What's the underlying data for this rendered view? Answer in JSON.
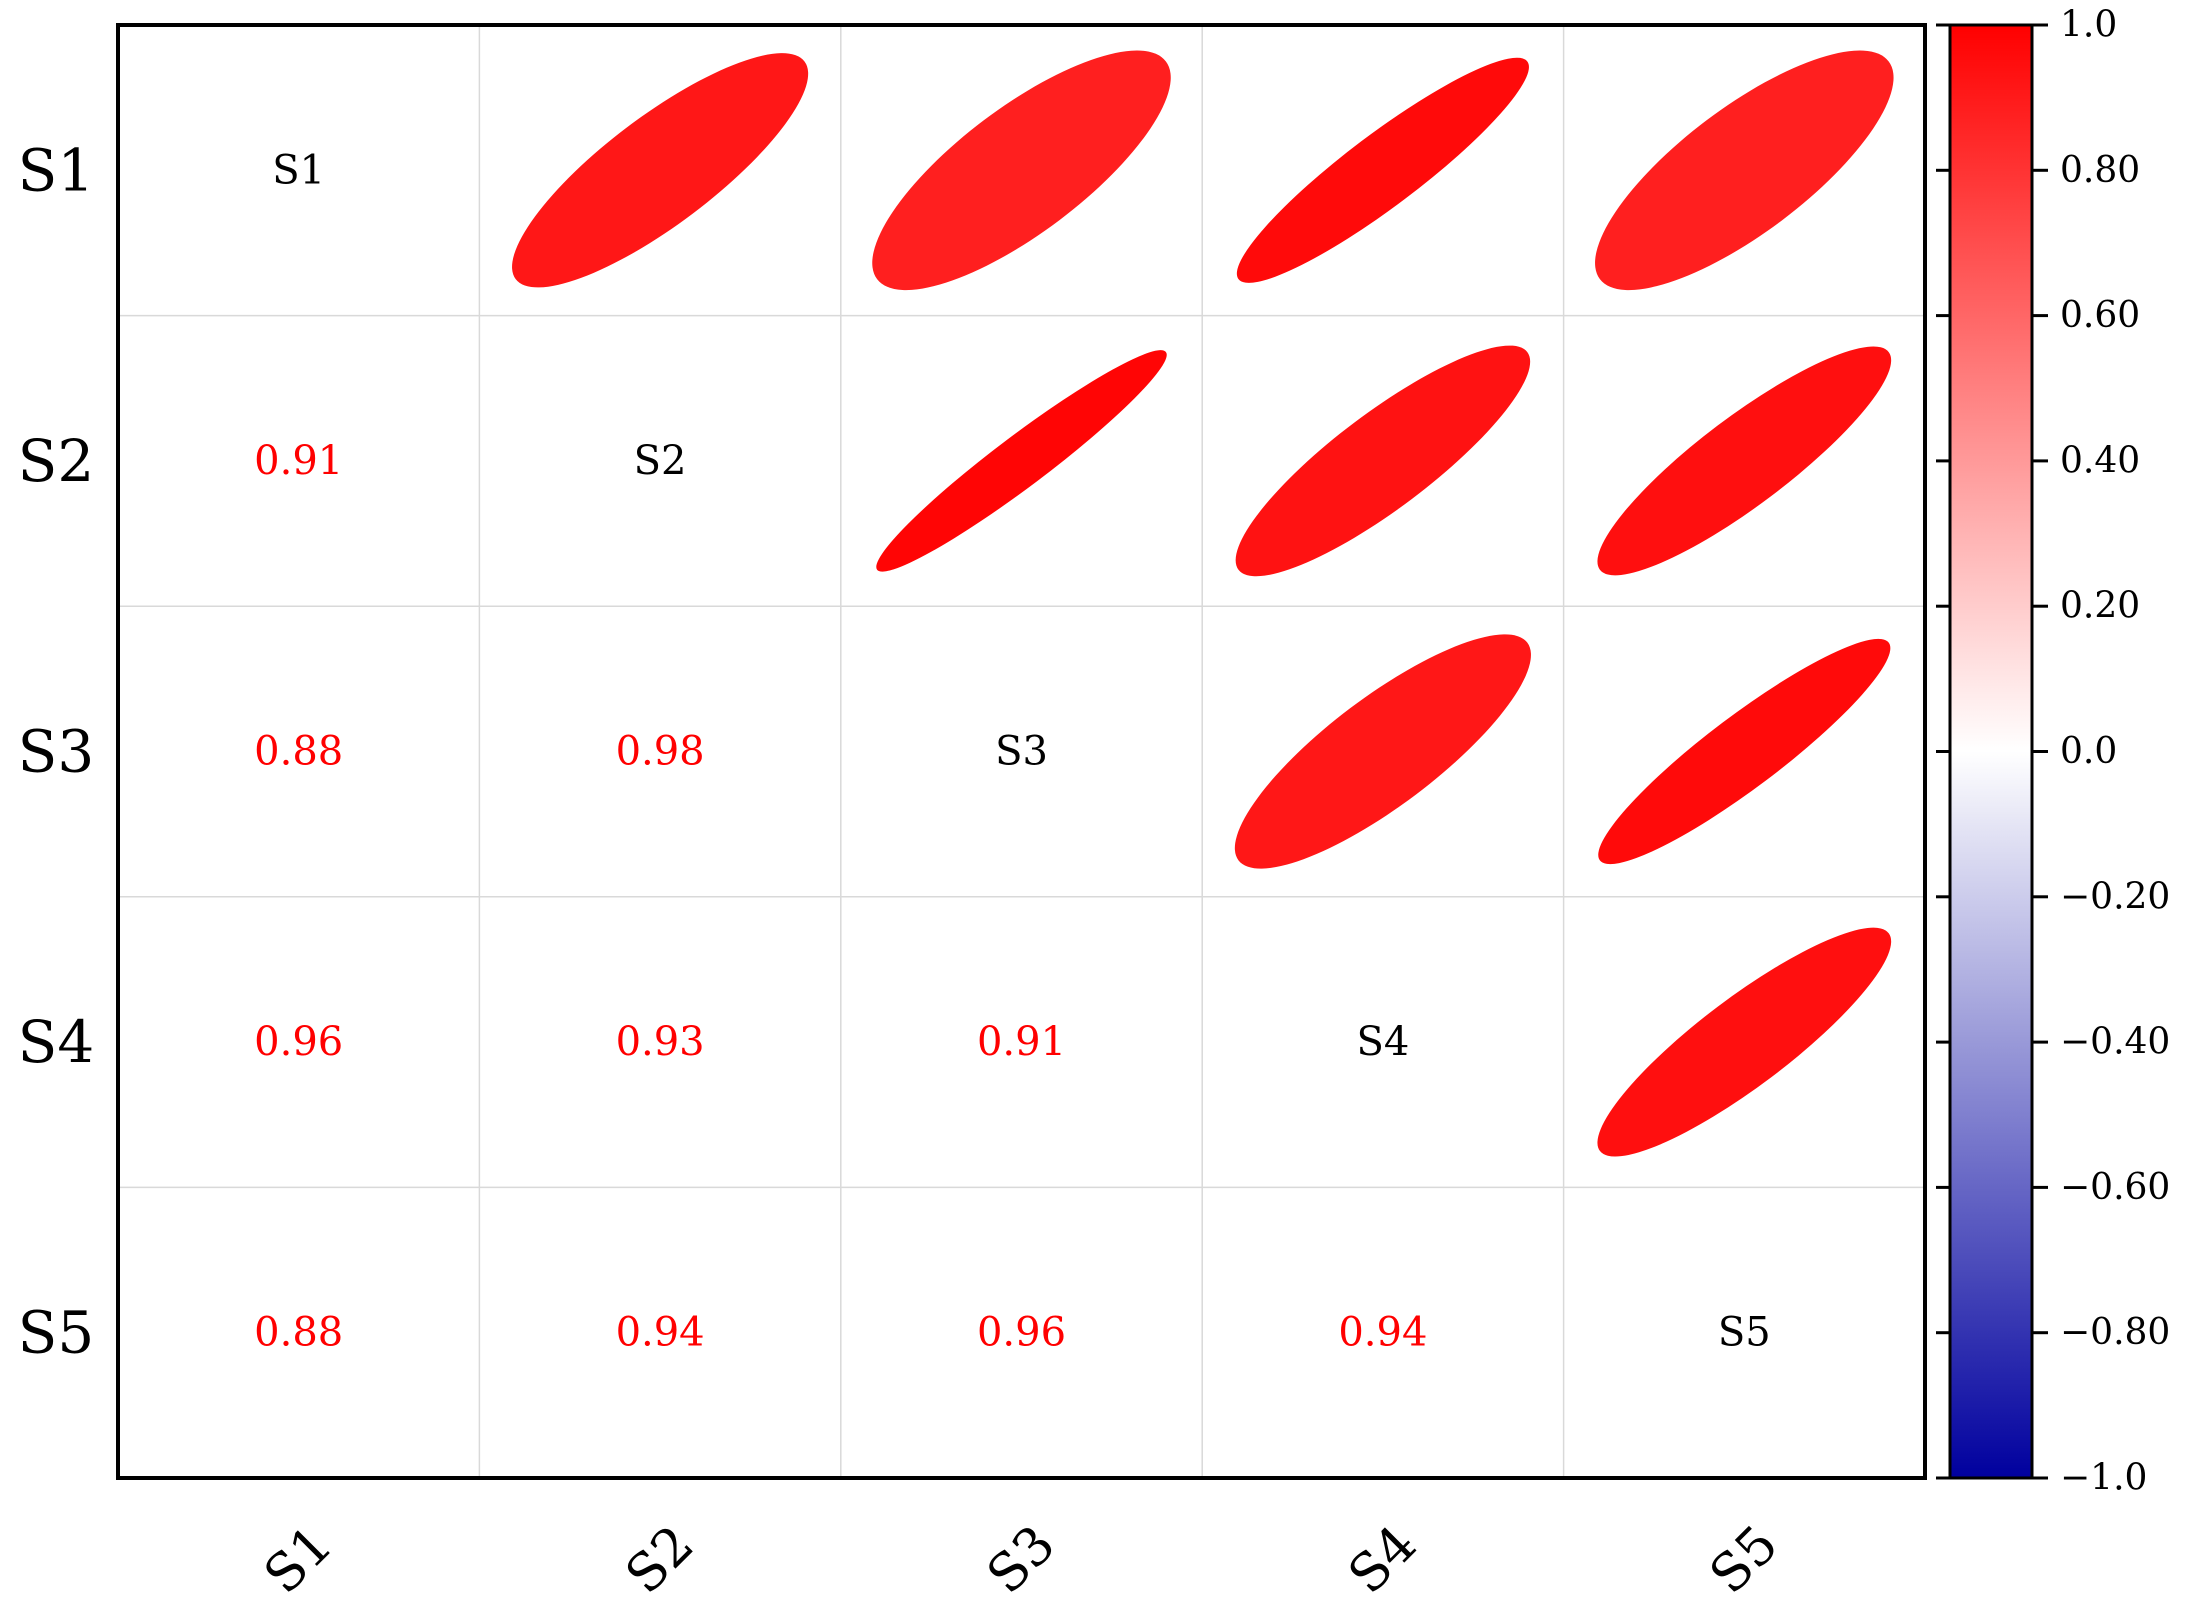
{
  "chart_data": {
    "type": "heatmap",
    "subtype": "correlation-matrix",
    "variables": [
      "S1",
      "S2",
      "S3",
      "S4",
      "S5"
    ],
    "matrix": [
      [
        1.0,
        0.91,
        0.88,
        0.96,
        0.88
      ],
      [
        0.91,
        1.0,
        0.98,
        0.93,
        0.94
      ],
      [
        0.88,
        0.98,
        1.0,
        0.91,
        0.96
      ],
      [
        0.96,
        0.93,
        0.91,
        1.0,
        0.94
      ],
      [
        0.88,
        0.94,
        0.96,
        0.94,
        1.0
      ]
    ],
    "lower_triangle_labels": [
      {
        "row": "S2",
        "col": "S1",
        "text": "0.91"
      },
      {
        "row": "S3",
        "col": "S1",
        "text": "0.88"
      },
      {
        "row": "S3",
        "col": "S2",
        "text": "0.98"
      },
      {
        "row": "S4",
        "col": "S1",
        "text": "0.96"
      },
      {
        "row": "S4",
        "col": "S2",
        "text": "0.93"
      },
      {
        "row": "S4",
        "col": "S3",
        "text": "0.91"
      },
      {
        "row": "S5",
        "col": "S1",
        "text": "0.88"
      },
      {
        "row": "S5",
        "col": "S2",
        "text": "0.94"
      },
      {
        "row": "S5",
        "col": "S3",
        "text": "0.96"
      },
      {
        "row": "S5",
        "col": "S4",
        "text": "0.94"
      }
    ],
    "upper_triangle_glyph": "ellipse",
    "diagonal": "variable-name",
    "colorbar": {
      "range": [
        -1.0,
        1.0
      ],
      "ticks": [
        "1.0",
        "0.80",
        "0.60",
        "0.40",
        "0.20",
        "0.0",
        "−0.20",
        "−0.40",
        "−0.60",
        "−0.80",
        "−1.0"
      ],
      "colors": {
        "low": "#00009e",
        "mid": "#ffffff",
        "high": "#ff0000"
      }
    },
    "grid": true,
    "colorbar_position": "right",
    "title": "",
    "xlabel": "",
    "ylabel": ""
  }
}
